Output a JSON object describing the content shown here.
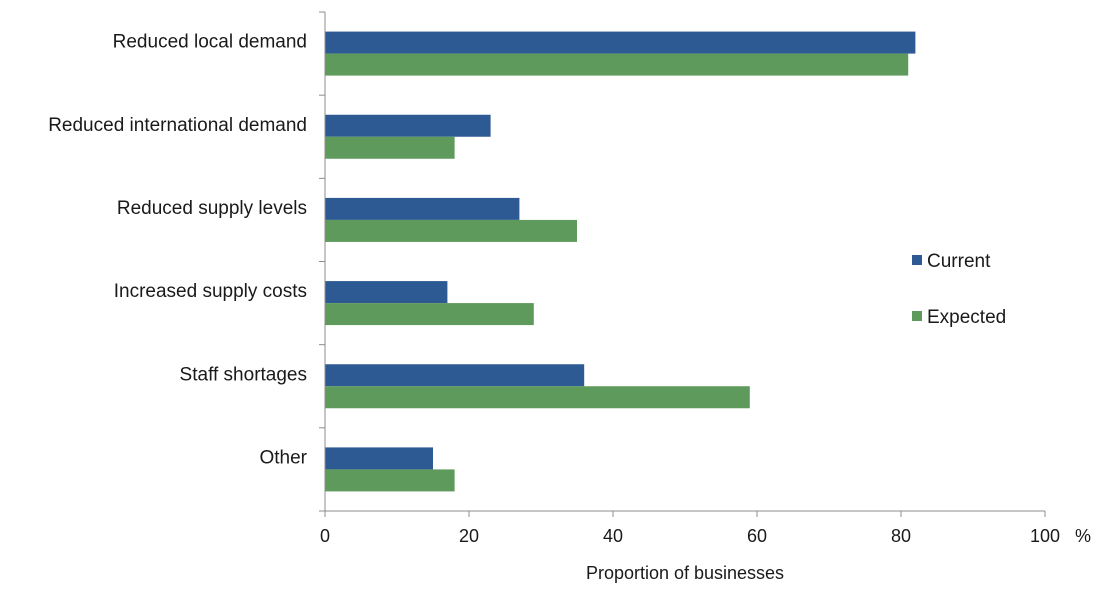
{
  "chart_data": {
    "type": "bar",
    "orientation": "horizontal",
    "categories": [
      "Reduced local demand",
      "Reduced international demand",
      "Reduced supply levels",
      "Increased supply costs",
      "Staff shortages",
      "Other"
    ],
    "series": [
      {
        "name": "Current",
        "color": "#2e5a93",
        "values": [
          82,
          23,
          27,
          17,
          36,
          15
        ]
      },
      {
        "name": "Expected",
        "color": "#5e9a5b",
        "values": [
          81,
          18,
          35,
          29,
          59,
          18
        ]
      }
    ],
    "xlabel": "Proportion of businesses",
    "x_unit": "%",
    "xlim": [
      0,
      100
    ],
    "x_ticks": [
      0,
      20,
      40,
      60,
      80,
      100
    ],
    "grid": false,
    "legend_position": "right"
  }
}
